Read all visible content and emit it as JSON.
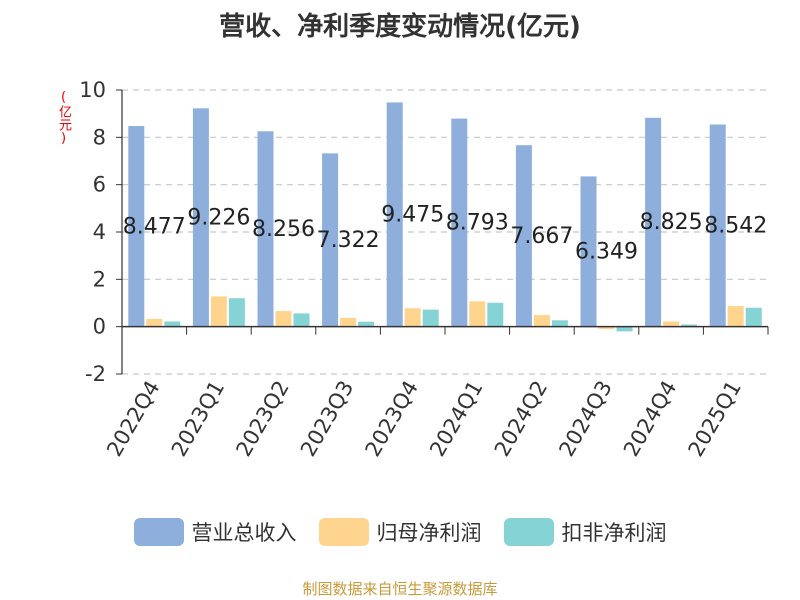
{
  "title": "营收、净利季度变动情况(亿元)",
  "unit": "(亿元)",
  "source": "制图数据来自恒生聚源数据库",
  "chart_data": {
    "type": "bar",
    "categories": [
      "2022Q4",
      "2023Q1",
      "2023Q2",
      "2023Q3",
      "2023Q4",
      "2024Q1",
      "2024Q2",
      "2024Q3",
      "2024Q4",
      "2025Q1"
    ],
    "ylim": [
      -2,
      10
    ],
    "yticks": [
      -2,
      0,
      2,
      4,
      6,
      8,
      10
    ],
    "grid": true,
    "legend_position": "bottom",
    "series": [
      {
        "name": "营业总收入",
        "color": "#8eaedb",
        "values": [
          8.477,
          9.226,
          8.256,
          7.322,
          9.475,
          8.793,
          7.667,
          6.349,
          8.825,
          8.542
        ],
        "labels": [
          "8.477",
          "9.226",
          "8.256",
          "7.322",
          "9.475",
          "8.793",
          "7.667",
          "6.349",
          "8.825",
          "8.542"
        ]
      },
      {
        "name": "归母净利润",
        "color": "#ffd48f",
        "values": [
          0.33,
          1.28,
          0.66,
          0.37,
          0.78,
          1.07,
          0.49,
          -0.1,
          0.22,
          0.87
        ]
      },
      {
        "name": "扣非净利润",
        "color": "#86d3d5",
        "values": [
          0.22,
          1.2,
          0.56,
          0.21,
          0.72,
          1.01,
          0.27,
          -0.2,
          0.09,
          0.8
        ]
      }
    ]
  }
}
